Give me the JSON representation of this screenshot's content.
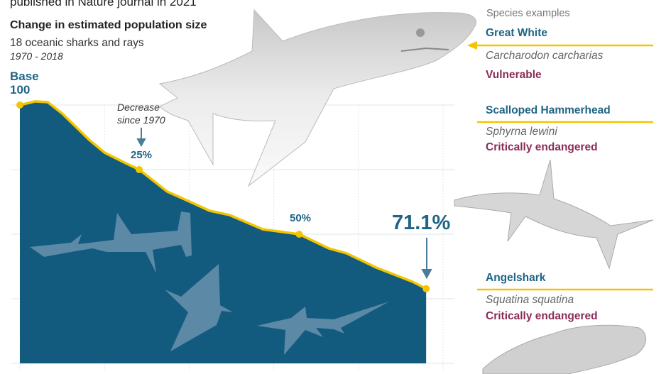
{
  "header": {
    "source": "published in Nature journal in 2021",
    "title": "Change in estimated population size",
    "subtitle": "18 oceanic sharks and rays",
    "period": "1970 - 2018",
    "base_label_1": "Base",
    "base_label_2": "100"
  },
  "annotations": {
    "decrease_1": "Decrease",
    "decrease_2": "since 1970",
    "p25": "25%",
    "p50": "50%",
    "p71": "71.1%"
  },
  "species": {
    "heading": "Species examples",
    "items": [
      {
        "name": "Great White",
        "latin": "Carcharodon carcharias",
        "status": "Vulnerable"
      },
      {
        "name": "Scalloped Hammerhead",
        "latin": "Sphyrna lewini",
        "status": "Critically endangered"
      },
      {
        "name": "Angelshark",
        "latin": "Squatina squatina",
        "status": "Critically endangered"
      }
    ]
  },
  "colors": {
    "fill": "#125b7f",
    "line": "#f2c500",
    "accent": "#1f6484",
    "status": "#8b2b57"
  },
  "chart_data": {
    "type": "area",
    "title": "Change in estimated population size",
    "xlabel": "",
    "ylabel": "",
    "xlim": [
      1970,
      2020
    ],
    "ylim": [
      0,
      100
    ],
    "grid": true,
    "x": [
      1970,
      1971.8,
      1973.3,
      1975,
      1978.2,
      1980,
      1982.5,
      1984.1,
      1987.4,
      1990.2,
      1992.4,
      1994.8,
      1998.7,
      2003,
      2006.5,
      2008.6,
      2012.1,
      2016.4,
      2018
    ],
    "y": [
      100,
      101.4,
      101.1,
      96.7,
      86.5,
      81.6,
      77.5,
      75,
      66.5,
      62.4,
      59.1,
      57.4,
      51.9,
      50,
      44.5,
      42.6,
      37.1,
      31.6,
      28.9
    ],
    "markers": [
      {
        "x": 1970,
        "y": 100,
        "label": "Base 100"
      },
      {
        "x": 1984.1,
        "y": 75,
        "label": "25%"
      },
      {
        "x": 2003,
        "y": 50,
        "label": "50%"
      },
      {
        "x": 2018,
        "y": 28.9,
        "label": "71.1%"
      }
    ]
  }
}
